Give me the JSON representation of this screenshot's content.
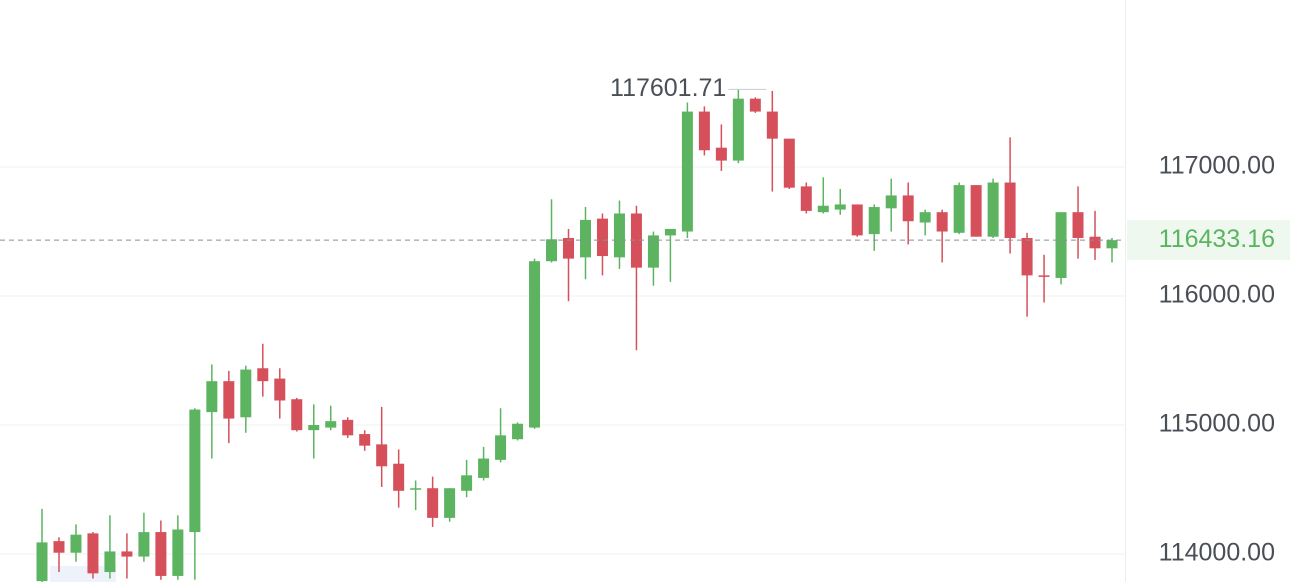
{
  "chart_data": {
    "type": "candlestick",
    "open": [
      113790,
      114100,
      114010,
      114160,
      113860,
      114020,
      113980,
      114170,
      113830,
      114170,
      115100,
      115340,
      115060,
      115440,
      115360,
      115200,
      114960,
      114980,
      115040,
      114930,
      114850,
      114700,
      114500,
      114510,
      114280,
      114490,
      114590,
      114730,
      114890,
      114980,
      116270,
      116450,
      116300,
      116600,
      116300,
      116640,
      116220,
      116470,
      116500,
      117430,
      117150,
      117050,
      117530,
      117430,
      117220,
      116850,
      116650,
      116670,
      116710,
      116480,
      116680,
      116780,
      116570,
      116650,
      116490,
      116860,
      116460,
      116880,
      116450,
      116160,
      116140,
      116650,
      116460,
      116370
    ],
    "high": [
      114350,
      114130,
      114230,
      114170,
      114300,
      114160,
      114320,
      114260,
      114300,
      115130,
      115470,
      115420,
      115460,
      115630,
      115440,
      115210,
      115160,
      115150,
      115060,
      114960,
      115140,
      114810,
      114570,
      114600,
      114510,
      114730,
      114830,
      115130,
      115020,
      116290,
      116750,
      116520,
      116690,
      116640,
      116740,
      116700,
      116500,
      116520,
      117500,
      117470,
      117330,
      117601.71,
      117540,
      117590,
      117220,
      116880,
      116920,
      116830,
      116710,
      116710,
      116910,
      116880,
      116670,
      116670,
      116880,
      116860,
      116910,
      117230,
      116490,
      116320,
      116650,
      116850,
      116660,
      116450
    ],
    "low": [
      113780,
      113860,
      113940,
      113810,
      113810,
      113810,
      113940,
      113800,
      113800,
      113800,
      114740,
      114860,
      114940,
      115220,
      115050,
      114950,
      114740,
      114960,
      114900,
      114800,
      114520,
      114360,
      114340,
      114210,
      114250,
      114440,
      114570,
      114710,
      114880,
      114970,
      116260,
      115960,
      116130,
      116160,
      116210,
      115580,
      116080,
      116110,
      116450,
      117090,
      116970,
      117030,
      117420,
      116810,
      116830,
      116640,
      116640,
      116630,
      116460,
      116350,
      116500,
      116400,
      116470,
      116260,
      116480,
      116460,
      116450,
      116330,
      115840,
      115950,
      116090,
      116290,
      116280,
      116260
    ],
    "close": [
      114090,
      114010,
      114150,
      113850,
      114020,
      113980,
      114170,
      113830,
      114190,
      115120,
      115340,
      115050,
      115430,
      115340,
      115190,
      114960,
      115000,
      115030,
      114920,
      114840,
      114680,
      114490,
      114510,
      114280,
      114510,
      114610,
      114740,
      114920,
      115010,
      116270,
      116440,
      116290,
      116590,
      116310,
      116640,
      116220,
      116470,
      116520,
      117430,
      117130,
      117050,
      117530,
      117430,
      117220,
      116840,
      116660,
      116700,
      116710,
      116470,
      116690,
      116780,
      116580,
      116650,
      116500,
      116860,
      116460,
      116880,
      116450,
      116160,
      116150,
      116650,
      116450,
      116370,
      116433.16
    ],
    "up_color": "#5cb461",
    "down_color": "#d5505a",
    "ylim": [
      113783,
      118295
    ],
    "yticks": [
      {
        "value": 114000,
        "label": "114000.00"
      },
      {
        "value": 115000,
        "label": "115000.00"
      },
      {
        "value": 116000,
        "label": "116000.00"
      },
      {
        "value": 117000,
        "label": "117000.00"
      }
    ],
    "grid": true
  }
}
